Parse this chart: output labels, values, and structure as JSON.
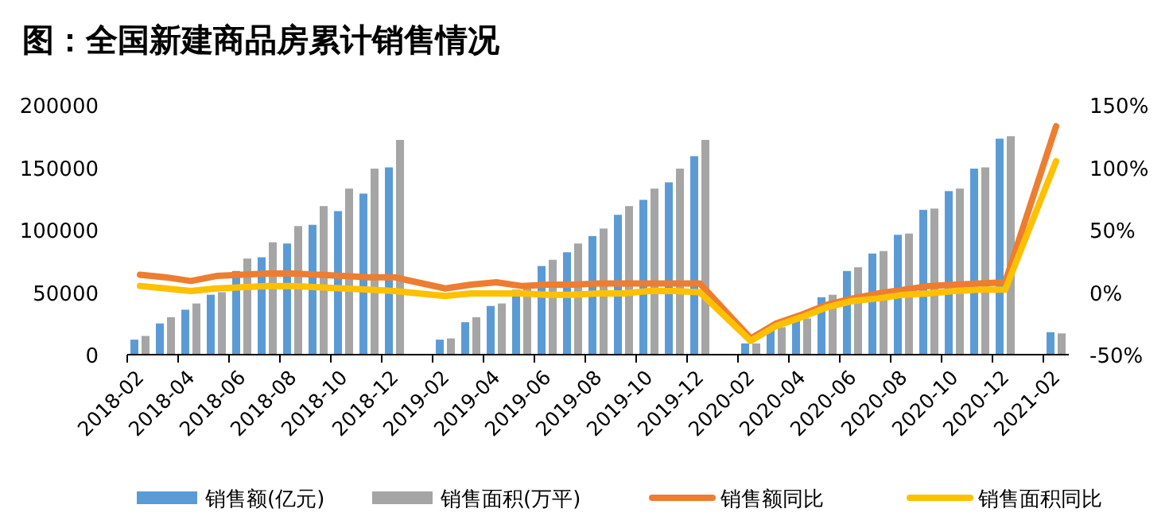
{
  "chart_data": {
    "type": "bar",
    "title": "图：全国新建商品房累计销售情况",
    "categories": [
      "2018-02",
      null,
      "2018-04",
      null,
      "2018-06",
      null,
      "2018-08",
      null,
      "2018-10",
      null,
      "2018-12",
      null,
      "2019-02",
      null,
      "2019-04",
      null,
      "2019-06",
      null,
      "2019-08",
      null,
      "2019-10",
      null,
      "2019-12",
      null,
      "2020-02",
      null,
      "2020-04",
      null,
      "2020-06",
      null,
      "2020-08",
      null,
      "2020-10",
      null,
      "2020-12",
      null,
      "2021-02"
    ],
    "series": [
      {
        "name": "销售额(亿元)",
        "color": "#5b9bd5",
        "values": [
          12000,
          25000,
          36000,
          48000,
          67000,
          78000,
          89000,
          104000,
          115000,
          129000,
          150000,
          null,
          12000,
          26000,
          39000,
          52000,
          71000,
          82000,
          95000,
          112000,
          124000,
          138000,
          159000,
          null,
          9000,
          21000,
          28000,
          46000,
          67000,
          81000,
          96000,
          116000,
          131000,
          149000,
          173000,
          null,
          18000
        ]
      },
      {
        "name": "销售面积(万平)",
        "color": "#a5a5a5",
        "values": [
          15000,
          30000,
          41000,
          50000,
          77000,
          90000,
          103000,
          119000,
          133000,
          149000,
          172000,
          null,
          13000,
          30000,
          41000,
          55000,
          76000,
          89000,
          101000,
          119000,
          133000,
          149000,
          172000,
          null,
          9000,
          22000,
          29000,
          48000,
          70000,
          83000,
          97000,
          117000,
          133000,
          150000,
          175000,
          null,
          17000
        ]
      },
      {
        "name": "销售额同比",
        "type": "line",
        "axis": "y2",
        "color": "#ed7d31",
        "values": [
          14,
          12,
          9,
          13,
          14,
          15,
          15,
          14,
          13,
          12,
          12,
          null,
          3,
          6,
          8,
          5,
          6,
          6,
          7,
          7,
          7,
          7,
          7,
          null,
          -37,
          -25,
          -18,
          -10,
          -5,
          -1,
          2,
          5,
          6,
          7,
          8,
          null,
          133
        ]
      },
      {
        "name": "销售面积同比",
        "type": "line",
        "axis": "y2",
        "color": "#ffc000",
        "values": [
          5,
          3,
          1,
          3,
          4,
          5,
          5,
          4,
          3,
          2,
          1,
          null,
          -3,
          -1,
          -1,
          -1,
          -2,
          -2,
          -1,
          -1,
          1,
          1,
          0,
          null,
          -39,
          -27,
          -20,
          -12,
          -7,
          -5,
          -2,
          -1,
          1,
          2,
          2,
          null,
          105
        ]
      }
    ],
    "ylim": [
      0,
      200000
    ],
    "yticks": [
      0,
      50000,
      100000,
      150000,
      200000
    ],
    "y2lim": [
      -50,
      150
    ],
    "y2ticks": [
      {
        "value": -50,
        "label": "-50%"
      },
      {
        "value": 0,
        "label": "0%"
      },
      {
        "value": 50,
        "label": "50%"
      },
      {
        "value": 100,
        "label": "100%"
      },
      {
        "value": 150,
        "label": "150%"
      }
    ],
    "grid": false,
    "legend": "bottom"
  }
}
